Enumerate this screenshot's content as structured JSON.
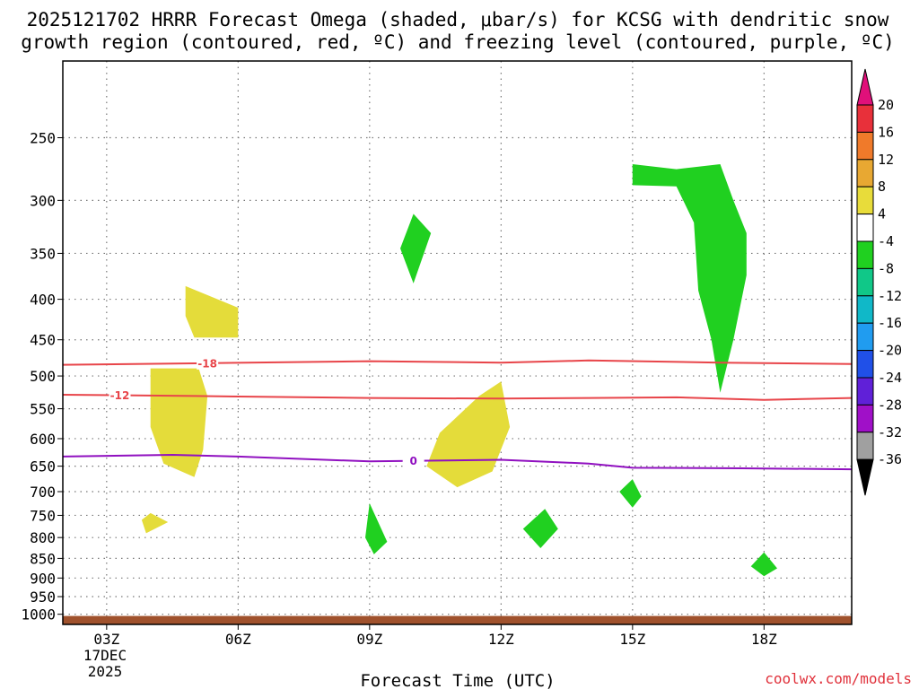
{
  "chart_data": {
    "type": "contour",
    "title_line1": "2025121702 HRRR Forecast Omega (shaded, μbar/s) for KCSG with dendritic snow",
    "title_line2": "growth region (contoured, red, ºC) and freezing level (contoured, purple, ºC)",
    "xlabel": "Forecast Time (UTC)",
    "x_ticks": [
      "03Z",
      "06Z",
      "09Z",
      "12Z",
      "15Z",
      "18Z"
    ],
    "x_tick_hours": [
      3,
      6,
      9,
      12,
      15,
      18
    ],
    "xlim_hours": [
      2,
      20
    ],
    "date_label_1": "17DEC",
    "date_label_2": "2025",
    "y_ticks": [
      "250",
      "300",
      "350",
      "400",
      "450",
      "500",
      "550",
      "600",
      "650",
      "700",
      "750",
      "800",
      "850",
      "900",
      "950",
      "1000"
    ],
    "y_tick_values": [
      250,
      300,
      350,
      400,
      450,
      500,
      550,
      600,
      650,
      700,
      750,
      800,
      850,
      900,
      950,
      1000
    ],
    "ylim_mb": [
      200,
      1030
    ],
    "ground_top_mb": 1005,
    "colorbar_labels": [
      "20",
      "16",
      "12",
      "8",
      "4",
      "-4",
      "-8",
      "-12",
      "-16",
      "-20",
      "-24",
      "-28",
      "-32",
      "-36"
    ],
    "colorbar_colors": [
      "#e8303a",
      "#f07a2a",
      "#e8a832",
      "#e8dc3a",
      "#ffffff",
      "#20d020",
      "#10c888",
      "#10b8c8",
      "#209cf0",
      "#2050e8",
      "#6020d8",
      "#a010c8",
      "#a0a0a0"
    ],
    "colorbar_top_arrow": "#e0107a",
    "colorbar_bottom_arrow": "#000000",
    "contours": [
      {
        "name": "isotherm-minus-18",
        "label": "-18",
        "color": "#e8454a",
        "label_time": 5.3,
        "points": [
          [
            2.0,
            484
          ],
          [
            5.0,
            482
          ],
          [
            9.0,
            479
          ],
          [
            12.0,
            481
          ],
          [
            14.0,
            478
          ],
          [
            17.0,
            481
          ],
          [
            20.0,
            483
          ]
        ]
      },
      {
        "name": "isotherm-minus-12",
        "label": "-12",
        "color": "#e8454a",
        "label_time": 3.3,
        "points": [
          [
            2.0,
            528
          ],
          [
            5.0,
            530
          ],
          [
            9.0,
            533
          ],
          [
            12.0,
            534
          ],
          [
            14.0,
            533
          ],
          [
            16.0,
            532
          ],
          [
            18.0,
            536
          ],
          [
            20.0,
            533
          ]
        ]
      },
      {
        "name": "freezing-level",
        "label": "0",
        "color": "#9010c0",
        "label_time": 10.0,
        "points": [
          [
            2.0,
            632
          ],
          [
            4.5,
            629
          ],
          [
            6.0,
            632
          ],
          [
            9.0,
            641
          ],
          [
            12.0,
            638
          ],
          [
            14.0,
            645
          ],
          [
            15.0,
            653
          ],
          [
            17.5,
            654
          ],
          [
            20.0,
            656
          ]
        ]
      }
    ],
    "omega_regions": [
      {
        "value_class": "4",
        "color": "#e4dc3a",
        "points": [
          [
            4.8,
            385
          ],
          [
            6.0,
            410
          ],
          [
            6.0,
            447
          ],
          [
            5.0,
            447
          ],
          [
            4.8,
            420
          ]
        ]
      },
      {
        "value_class": "4",
        "color": "#e4dc3a",
        "points": [
          [
            4.0,
            489
          ],
          [
            5.1,
            489
          ],
          [
            5.3,
            530
          ],
          [
            5.2,
            620
          ],
          [
            5.0,
            671
          ],
          [
            4.3,
            645
          ],
          [
            4.0,
            580
          ]
        ]
      },
      {
        "value_class": "4",
        "color": "#e4dc3a",
        "points": [
          [
            4.0,
            745
          ],
          [
            4.4,
            765
          ],
          [
            3.9,
            790
          ],
          [
            3.8,
            760
          ]
        ]
      },
      {
        "value_class": "4",
        "color": "#e4dc3a",
        "points": [
          [
            12.0,
            508
          ],
          [
            12.2,
            580
          ],
          [
            11.8,
            660
          ],
          [
            11.0,
            691
          ],
          [
            10.3,
            650
          ],
          [
            10.6,
            590
          ],
          [
            11.5,
            530
          ]
        ]
      },
      {
        "value_class": "-4",
        "color": "#20d020",
        "points": [
          [
            10.0,
            312
          ],
          [
            10.4,
            330
          ],
          [
            10.0,
            382
          ],
          [
            9.7,
            345
          ]
        ]
      },
      {
        "value_class": "-4",
        "color": "#20d020",
        "points": [
          [
            9.0,
            724
          ],
          [
            9.4,
            810
          ],
          [
            9.1,
            840
          ],
          [
            8.9,
            800
          ]
        ]
      },
      {
        "value_class": "-4",
        "color": "#20d020",
        "points": [
          [
            13.0,
            736
          ],
          [
            13.3,
            780
          ],
          [
            12.9,
            825
          ],
          [
            12.5,
            780
          ]
        ]
      },
      {
        "value_class": "-4",
        "color": "#20d020",
        "points": [
          [
            15.0,
            675
          ],
          [
            15.2,
            710
          ],
          [
            15.0,
            733
          ],
          [
            14.7,
            700
          ]
        ]
      },
      {
        "value_class": "-4",
        "color": "#20d020",
        "points": [
          [
            18.0,
            835
          ],
          [
            18.3,
            875
          ],
          [
            18.0,
            895
          ],
          [
            17.7,
            870
          ]
        ]
      },
      {
        "value_class": "-4",
        "color": "#20d020",
        "points": [
          [
            15.0,
            270
          ],
          [
            16.0,
            274
          ],
          [
            17.0,
            270
          ],
          [
            17.3,
            300
          ],
          [
            17.6,
            330
          ],
          [
            17.6,
            373
          ],
          [
            17.3,
            450
          ],
          [
            17.0,
            525
          ],
          [
            16.8,
            450
          ],
          [
            16.5,
            390
          ],
          [
            16.4,
            320
          ],
          [
            16.0,
            288
          ],
          [
            15.0,
            287
          ]
        ]
      }
    ]
  },
  "credit": "coolwx.com/models"
}
